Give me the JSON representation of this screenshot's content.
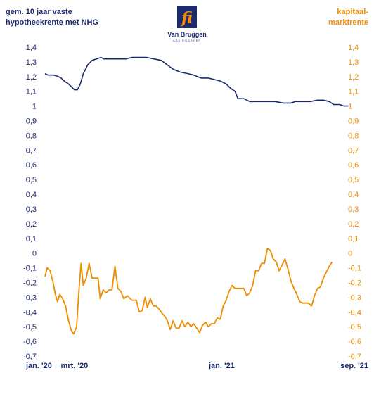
{
  "header": {
    "left_title_line1": "gem. 10 jaar vaste",
    "left_title_line2": "hypotheekrente met NHG",
    "right_title_line1": "kapitaal-",
    "right_title_line2": "marktrente",
    "logo_name": "Van Bruggen",
    "logo_sub": "ADVIESGROEP",
    "logo_letters": "fi"
  },
  "colors": {
    "left_series": "#1d2a6e",
    "right_series": "#f08c00",
    "logo_box": "#1d2a6e",
    "logo_letters": "#f08c00"
  },
  "chart_data": {
    "type": "line",
    "title": "",
    "ylabel_left": "gem. 10 jaar vaste hypotheekrente met NHG",
    "ylabel_right": "kapitaalmarktrente",
    "ylim": [
      -0.7,
      1.4
    ],
    "yticks": [
      "1,4",
      "1,3",
      "1,2",
      "1,1",
      "1",
      "0,9",
      "0,8",
      "0,7",
      "0,6",
      "0,5",
      "0,4",
      "0,3",
      "0,2",
      "0,1",
      "0",
      "-0,1",
      "-0,2",
      "-0,3",
      "-0,4",
      "-0,5",
      "-0,6",
      "-0,7"
    ],
    "xlim": [
      0,
      20
    ],
    "xticks": [
      {
        "label": "jan. '20",
        "x": 0
      },
      {
        "label": "mrt. '20",
        "x": 2
      },
      {
        "label": "jan. '21",
        "x": 12
      },
      {
        "label": "sep. '21",
        "x": 20
      }
    ],
    "grid": false,
    "series": [
      {
        "name": "gem. 10 jaar vaste hypotheekrente met NHG",
        "axis": "left",
        "points": [
          [
            0,
            1.22
          ],
          [
            0.2,
            1.21
          ],
          [
            0.6,
            1.21
          ],
          [
            0.9,
            1.2
          ],
          [
            1.1,
            1.19
          ],
          [
            1.3,
            1.17
          ],
          [
            1.6,
            1.15
          ],
          [
            2.0,
            1.11
          ],
          [
            2.2,
            1.11
          ],
          [
            2.4,
            1.15
          ],
          [
            2.6,
            1.22
          ],
          [
            2.9,
            1.28
          ],
          [
            3.2,
            1.31
          ],
          [
            3.5,
            1.32
          ],
          [
            3.8,
            1.33
          ],
          [
            4.0,
            1.32
          ],
          [
            4.5,
            1.32
          ],
          [
            5.0,
            1.32
          ],
          [
            5.5,
            1.32
          ],
          [
            5.9,
            1.33
          ],
          [
            6.3,
            1.33
          ],
          [
            6.9,
            1.33
          ],
          [
            7.4,
            1.32
          ],
          [
            7.9,
            1.31
          ],
          [
            8.3,
            1.28
          ],
          [
            8.7,
            1.25
          ],
          [
            9.2,
            1.23
          ],
          [
            9.7,
            1.22
          ],
          [
            10.1,
            1.21
          ],
          [
            10.6,
            1.19
          ],
          [
            11.1,
            1.19
          ],
          [
            11.5,
            1.18
          ],
          [
            11.9,
            1.17
          ],
          [
            12.3,
            1.15
          ],
          [
            12.6,
            1.12
          ],
          [
            12.9,
            1.1
          ],
          [
            13.1,
            1.05
          ],
          [
            13.5,
            1.05
          ],
          [
            13.9,
            1.03
          ],
          [
            14.4,
            1.03
          ],
          [
            15.0,
            1.03
          ],
          [
            15.6,
            1.03
          ],
          [
            16.2,
            1.02
          ],
          [
            16.7,
            1.02
          ],
          [
            17.0,
            1.03
          ],
          [
            17.5,
            1.03
          ],
          [
            18.0,
            1.03
          ],
          [
            18.5,
            1.04
          ],
          [
            18.9,
            1.04
          ],
          [
            19.3,
            1.03
          ],
          [
            19.6,
            1.01
          ],
          [
            20.0,
            1.01
          ],
          [
            20.3,
            1.0
          ],
          [
            20.6,
            1.0
          ]
        ]
      },
      {
        "name": "kapitaalmarktrente",
        "axis": "right",
        "points": [
          [
            0,
            -0.16
          ],
          [
            0.15,
            -0.1
          ],
          [
            0.35,
            -0.12
          ],
          [
            0.55,
            -0.2
          ],
          [
            0.7,
            -0.28
          ],
          [
            0.85,
            -0.33
          ],
          [
            1.0,
            -0.28
          ],
          [
            1.2,
            -0.31
          ],
          [
            1.4,
            -0.36
          ],
          [
            1.6,
            -0.46
          ],
          [
            1.8,
            -0.53
          ],
          [
            1.95,
            -0.55
          ],
          [
            2.15,
            -0.5
          ],
          [
            2.3,
            -0.26
          ],
          [
            2.45,
            -0.07
          ],
          [
            2.6,
            -0.22
          ],
          [
            2.8,
            -0.17
          ],
          [
            3.0,
            -0.07
          ],
          [
            3.2,
            -0.17
          ],
          [
            3.4,
            -0.17
          ],
          [
            3.6,
            -0.17
          ],
          [
            3.75,
            -0.31
          ],
          [
            3.95,
            -0.25
          ],
          [
            4.15,
            -0.27
          ],
          [
            4.35,
            -0.25
          ],
          [
            4.55,
            -0.25
          ],
          [
            4.75,
            -0.09
          ],
          [
            4.95,
            -0.24
          ],
          [
            5.15,
            -0.26
          ],
          [
            5.35,
            -0.31
          ],
          [
            5.6,
            -0.29
          ],
          [
            5.9,
            -0.32
          ],
          [
            6.2,
            -0.32
          ],
          [
            6.4,
            -0.4
          ],
          [
            6.6,
            -0.39
          ],
          [
            6.8,
            -0.3
          ],
          [
            6.95,
            -0.37
          ],
          [
            7.15,
            -0.31
          ],
          [
            7.35,
            -0.36
          ],
          [
            7.55,
            -0.36
          ],
          [
            7.75,
            -0.38
          ],
          [
            7.95,
            -0.41
          ],
          [
            8.15,
            -0.43
          ],
          [
            8.35,
            -0.47
          ],
          [
            8.5,
            -0.52
          ],
          [
            8.7,
            -0.46
          ],
          [
            8.9,
            -0.51
          ],
          [
            9.1,
            -0.51
          ],
          [
            9.3,
            -0.46
          ],
          [
            9.5,
            -0.5
          ],
          [
            9.7,
            -0.47
          ],
          [
            9.9,
            -0.5
          ],
          [
            10.1,
            -0.48
          ],
          [
            10.3,
            -0.51
          ],
          [
            10.5,
            -0.54
          ],
          [
            10.7,
            -0.49
          ],
          [
            10.9,
            -0.47
          ],
          [
            11.1,
            -0.5
          ],
          [
            11.3,
            -0.48
          ],
          [
            11.5,
            -0.48
          ],
          [
            11.7,
            -0.44
          ],
          [
            11.9,
            -0.45
          ],
          [
            12.1,
            -0.36
          ],
          [
            12.3,
            -0.32
          ],
          [
            12.5,
            -0.26
          ],
          [
            12.7,
            -0.22
          ],
          [
            12.9,
            -0.24
          ],
          [
            13.2,
            -0.24
          ],
          [
            13.5,
            -0.24
          ],
          [
            13.7,
            -0.29
          ],
          [
            13.9,
            -0.27
          ],
          [
            14.1,
            -0.22
          ],
          [
            14.3,
            -0.12
          ],
          [
            14.5,
            -0.12
          ],
          [
            14.7,
            -0.07
          ],
          [
            14.9,
            -0.07
          ],
          [
            15.1,
            0.03
          ],
          [
            15.3,
            0.02
          ],
          [
            15.5,
            -0.04
          ],
          [
            15.7,
            -0.06
          ],
          [
            15.9,
            -0.12
          ],
          [
            16.1,
            -0.08
          ],
          [
            16.3,
            -0.04
          ],
          [
            16.5,
            -0.11
          ],
          [
            16.7,
            -0.19
          ],
          [
            16.9,
            -0.24
          ],
          [
            17.1,
            -0.28
          ],
          [
            17.3,
            -0.33
          ],
          [
            17.5,
            -0.34
          ],
          [
            17.7,
            -0.34
          ],
          [
            17.9,
            -0.34
          ],
          [
            18.1,
            -0.36
          ],
          [
            18.3,
            -0.29
          ],
          [
            18.5,
            -0.24
          ],
          [
            18.7,
            -0.23
          ],
          [
            18.9,
            -0.17
          ],
          [
            19.1,
            -0.13
          ],
          [
            19.3,
            -0.09
          ],
          [
            19.5,
            -0.06
          ]
        ]
      }
    ]
  }
}
